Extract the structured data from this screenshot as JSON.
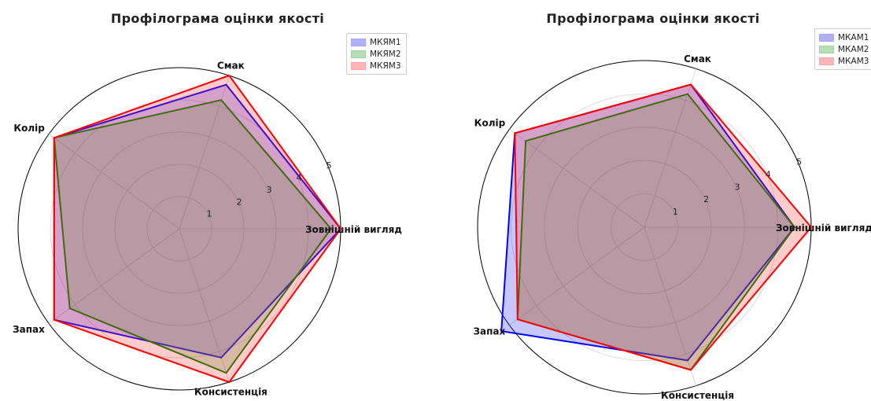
{
  "colors": {
    "series": [
      "#0000ff",
      "#008000",
      "#ff0000"
    ],
    "fills": [
      "#2020ff",
      "#30a030",
      "#ff3030"
    ]
  },
  "chart_data": [
    {
      "type": "radar",
      "title": "Профілограма оцінки якості",
      "categories": [
        "Зовнішній вигляд",
        "Смак",
        "Колір",
        "Запах",
        "Консистенція"
      ],
      "rlim": [
        0,
        5
      ],
      "rticks": [
        "1",
        "2",
        "3",
        "4",
        "5"
      ],
      "grid": true,
      "legend_position": "top-right",
      "series": [
        {
          "name": "МКЯМ1",
          "values": [
            5.0,
            4.7,
            4.8,
            4.8,
            4.2
          ]
        },
        {
          "name": "МКЯМ2",
          "values": [
            4.7,
            4.2,
            4.8,
            4.2,
            4.7
          ]
        },
        {
          "name": "МКЯМ3",
          "values": [
            5.0,
            5.0,
            4.8,
            4.8,
            5.0
          ]
        }
      ]
    },
    {
      "type": "radar",
      "title": "Профілограма оцінки якості",
      "categories": [
        "Зовнішній вигляд",
        "Смак",
        "Колір",
        "Запах",
        "Консистенція"
      ],
      "rlim": [
        0,
        5
      ],
      "rticks": [
        "1",
        "2",
        "3",
        "4",
        "5"
      ],
      "grid": true,
      "legend_position": "top-right",
      "series": [
        {
          "name": "МКАМ1",
          "values": [
            4.5,
            4.5,
            4.8,
            5.3,
            4.2
          ]
        },
        {
          "name": "МКАМ2",
          "values": [
            4.5,
            4.2,
            4.4,
            4.7,
            4.5
          ]
        },
        {
          "name": "МКАМ3",
          "values": [
            5.0,
            4.5,
            4.8,
            4.7,
            4.5
          ]
        }
      ]
    }
  ]
}
